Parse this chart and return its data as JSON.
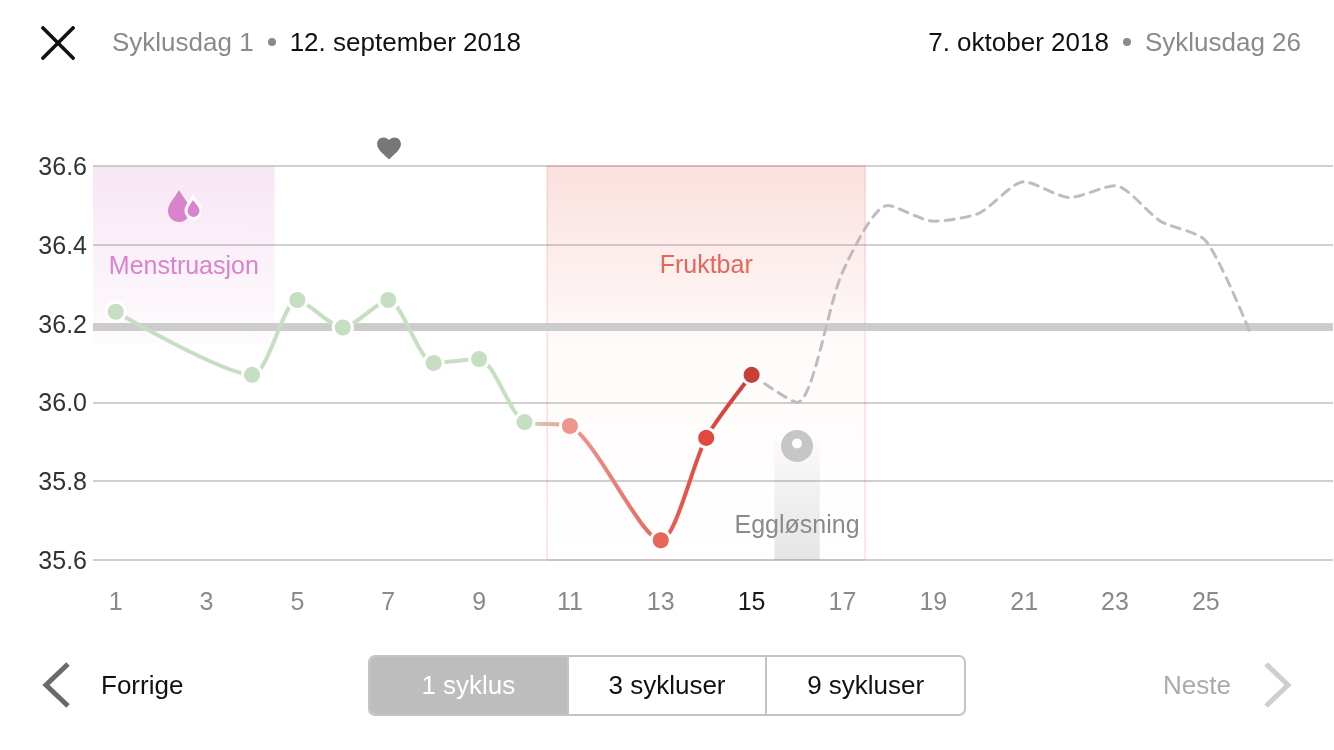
{
  "chart_data": {
    "type": "line",
    "annotations": [
      "Syklusdag 1",
      "12. september 2018",
      "7. oktober 2018",
      "Syklusdag 26",
      "Forrige",
      "1 syklus",
      "3 sykluser",
      "9 sykluser",
      "Neste"
    ],
    "xlim": [
      0.5,
      27.8
    ],
    "xticks": [
      1,
      3,
      5,
      7,
      9,
      11,
      13,
      15,
      17,
      19,
      21,
      23,
      25
    ],
    "ylim": [
      35.6,
      36.6
    ],
    "yticks": [
      35.6,
      35.8,
      {
        "value": 36,
        "label": "36.0"
      },
      36.2,
      36.4,
      36.6
    ],
    "grid": "y",
    "series": [
      {
        "x": [
          1,
          4,
          5,
          6,
          7,
          8,
          9,
          10,
          11,
          13,
          14,
          15
        ],
        "values": [
          36.23,
          36.07,
          36.26,
          36.19,
          36.26,
          36.1,
          36.11,
          35.95,
          35.94,
          35.65,
          35.91,
          36.07
        ],
        "colors": [
          "#c6dec1",
          "#c6dec1",
          "#c6dec1",
          "#c6dec1",
          "#c6dec1",
          "#c6dec1",
          "#c6dec1",
          "#c6dec1",
          "#ef958e",
          "#e8655a",
          "#e2493e",
          "#c9403a"
        ],
        "marker": "circle",
        "line_style": "solid"
      },
      {
        "x": [
          15,
          16,
          17,
          18,
          19,
          20,
          21,
          22,
          23,
          24,
          25,
          26
        ],
        "values": [
          36.07,
          36.0,
          36.33,
          36.5,
          36.46,
          36.48,
          36.56,
          36.52,
          36.55,
          36.46,
          36.41,
          36.17
        ],
        "color": "#bdbdbd",
        "marker": "none",
        "line_style": "dashed"
      }
    ],
    "ref_lines": [
      {
        "axis": "y",
        "value": 36.19,
        "color": "#cccccc"
      }
    ],
    "bands": [
      {
        "axis": "x",
        "from": 0.5,
        "to": 4.5,
        "label": "Menstruasjon",
        "color": "#d983cc"
      },
      {
        "axis": "x",
        "from": 10.5,
        "to": 17.5,
        "label": "Fruktbar",
        "color": "#e8655a"
      },
      {
        "axis": "x",
        "from": 15.5,
        "to": 16.5,
        "label": "Eggløsning",
        "color": "#8a8a8a"
      }
    ]
  }
}
